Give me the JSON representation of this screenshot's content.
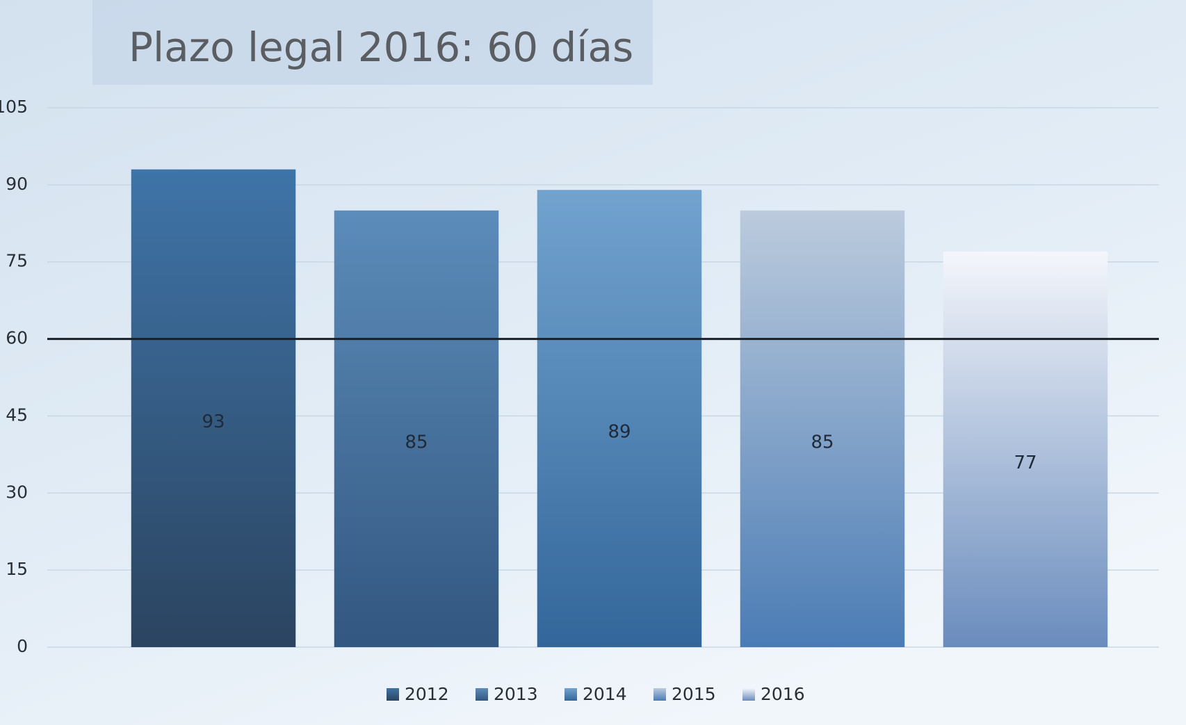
{
  "chart_data": {
    "type": "bar",
    "title": "Plazo legal 2016: 60 días",
    "categories": [
      "2012",
      "2013",
      "2014",
      "2015",
      "2016"
    ],
    "values": [
      93,
      85,
      89,
      85,
      77
    ],
    "gradients": [
      [
        "#3f74a8",
        "#2b4460"
      ],
      [
        "#5c8cba",
        "#325780"
      ],
      [
        "#72a3cf",
        "#33669a"
      ],
      [
        "#bccbdd",
        "#4b7cb5"
      ],
      [
        "#f4f6fb",
        "#6a8cbd"
      ]
    ],
    "reference_line": 60,
    "reference_color": "#1a1f26",
    "ylim": [
      0,
      105
    ],
    "yticks": [
      0,
      15,
      30,
      45,
      60,
      75,
      90,
      105
    ],
    "grid": true,
    "legend": "bottom"
  }
}
